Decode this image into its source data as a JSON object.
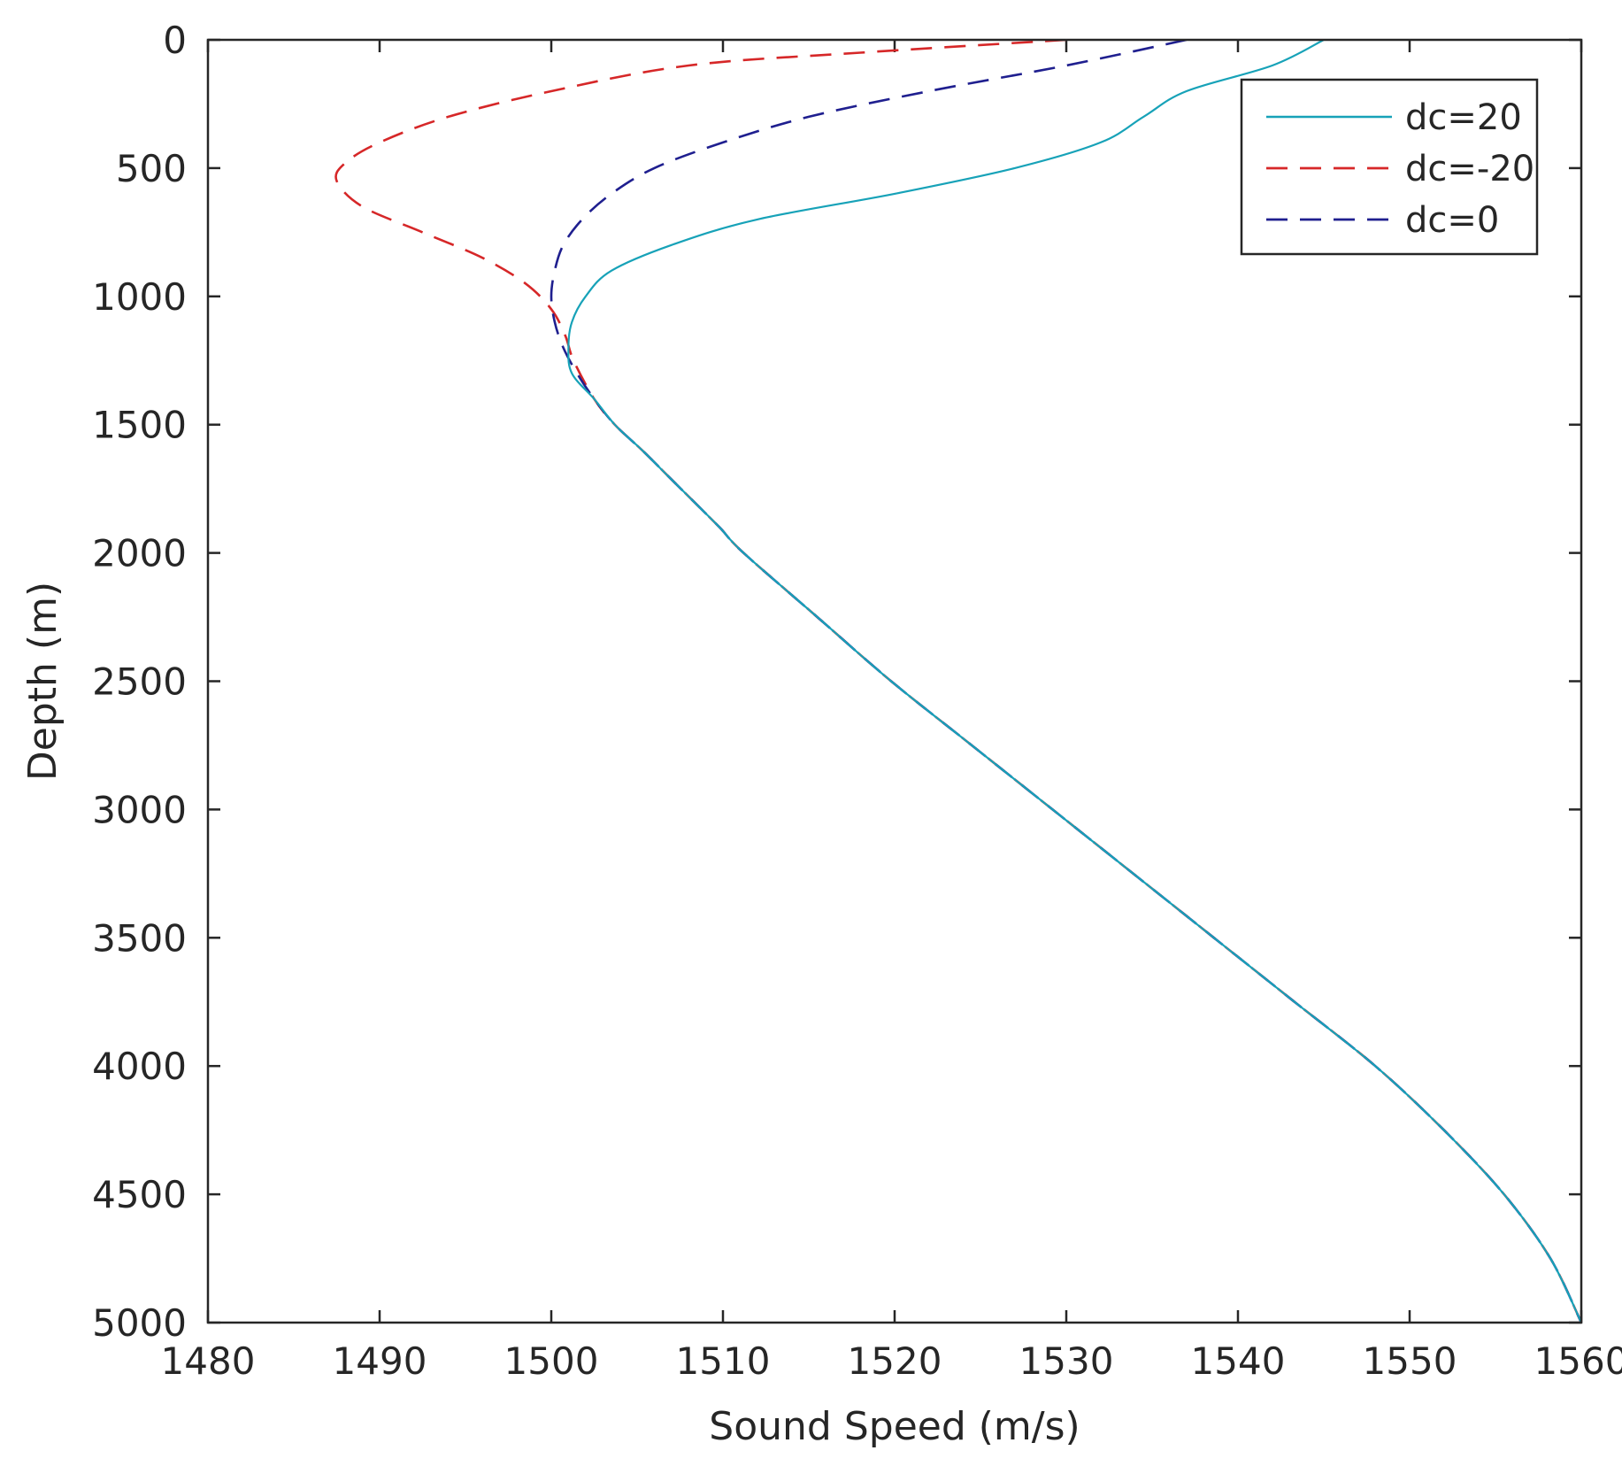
{
  "chart_data": {
    "type": "line",
    "title": "",
    "xlabel": "Sound Speed (m/s)",
    "ylabel": "Depth (m)",
    "xlim": [
      1480,
      1560
    ],
    "ylim": [
      0,
      5000
    ],
    "y_reversed": true,
    "xticks": [
      "1480",
      "1490",
      "1500",
      "1510",
      "1520",
      "1530",
      "1540",
      "1550",
      "1560"
    ],
    "yticks": [
      "0",
      "500",
      "1000",
      "1500",
      "2000",
      "2500",
      "3000",
      "3500",
      "4000",
      "4500",
      "5000"
    ],
    "grid": false,
    "legend_position": "top-right",
    "series": [
      {
        "name": "dc=20",
        "color": "#17a2b8",
        "style": "solid",
        "points": [
          [
            1545.0,
            0
          ],
          [
            1542.0,
            100
          ],
          [
            1537.0,
            200
          ],
          [
            1534.5,
            300
          ],
          [
            1532.0,
            400
          ],
          [
            1527.0,
            500
          ],
          [
            1520.0,
            600
          ],
          [
            1512.0,
            700
          ],
          [
            1507.0,
            800
          ],
          [
            1503.5,
            900
          ],
          [
            1502.0,
            1000
          ],
          [
            1501.2,
            1100
          ],
          [
            1501.0,
            1200
          ],
          [
            1501.2,
            1300
          ],
          [
            1502.5,
            1400
          ],
          [
            1503.7,
            1500
          ],
          [
            1505.3,
            1600
          ],
          [
            1506.8,
            1700
          ],
          [
            1508.3,
            1800
          ],
          [
            1509.8,
            1900
          ],
          [
            1511.2,
            2000
          ],
          [
            1515.5,
            2250
          ],
          [
            1519.8,
            2500
          ],
          [
            1524.5,
            2750
          ],
          [
            1529.2,
            3000
          ],
          [
            1533.9,
            3250
          ],
          [
            1538.6,
            3500
          ],
          [
            1543.3,
            3750
          ],
          [
            1548.0,
            4000
          ],
          [
            1552.0,
            4250
          ],
          [
            1555.5,
            4500
          ],
          [
            1558.2,
            4750
          ],
          [
            1560.0,
            5000
          ]
        ]
      },
      {
        "name": "dc=-20",
        "color": "#d62728",
        "style": "dashed",
        "points": [
          [
            1530.0,
            0
          ],
          [
            1518.0,
            50
          ],
          [
            1508.0,
            100
          ],
          [
            1500.0,
            200
          ],
          [
            1494.0,
            300
          ],
          [
            1490.0,
            400
          ],
          [
            1488.0,
            480
          ],
          [
            1487.5,
            550
          ],
          [
            1489.0,
            650
          ],
          [
            1492.5,
            750
          ],
          [
            1496.0,
            850
          ],
          [
            1498.5,
            950
          ],
          [
            1500.0,
            1050
          ],
          [
            1500.8,
            1150
          ],
          [
            1501.3,
            1250
          ],
          [
            1502.5,
            1400
          ],
          [
            1503.7,
            1500
          ],
          [
            1505.3,
            1600
          ],
          [
            1506.8,
            1700
          ],
          [
            1508.3,
            1800
          ],
          [
            1509.8,
            1900
          ],
          [
            1511.2,
            2000
          ],
          [
            1515.5,
            2250
          ],
          [
            1519.8,
            2500
          ],
          [
            1524.5,
            2750
          ],
          [
            1529.2,
            3000
          ],
          [
            1533.9,
            3250
          ],
          [
            1538.6,
            3500
          ],
          [
            1543.3,
            3750
          ],
          [
            1548.0,
            4000
          ],
          [
            1552.0,
            4250
          ],
          [
            1555.5,
            4500
          ],
          [
            1558.2,
            4750
          ],
          [
            1560.0,
            5000
          ]
        ]
      },
      {
        "name": "dc=0",
        "color": "#1f1f8f",
        "style": "dashed",
        "points": [
          [
            1537.0,
            0
          ],
          [
            1530.0,
            100
          ],
          [
            1522.0,
            200
          ],
          [
            1515.0,
            300
          ],
          [
            1510.0,
            400
          ],
          [
            1506.0,
            500
          ],
          [
            1503.5,
            600
          ],
          [
            1501.8,
            700
          ],
          [
            1500.7,
            800
          ],
          [
            1500.2,
            900
          ],
          [
            1500.0,
            1000
          ],
          [
            1500.2,
            1100
          ],
          [
            1500.7,
            1200
          ],
          [
            1501.5,
            1300
          ],
          [
            1502.5,
            1400
          ],
          [
            1503.7,
            1500
          ],
          [
            1505.3,
            1600
          ],
          [
            1506.8,
            1700
          ],
          [
            1508.3,
            1800
          ],
          [
            1509.8,
            1900
          ],
          [
            1511.2,
            2000
          ],
          [
            1515.5,
            2250
          ],
          [
            1519.8,
            2500
          ],
          [
            1524.5,
            2750
          ],
          [
            1529.2,
            3000
          ],
          [
            1533.9,
            3250
          ],
          [
            1538.6,
            3500
          ],
          [
            1543.3,
            3750
          ],
          [
            1548.0,
            4000
          ],
          [
            1552.0,
            4250
          ],
          [
            1555.5,
            4500
          ],
          [
            1558.2,
            4750
          ],
          [
            1560.0,
            5000
          ]
        ]
      }
    ]
  }
}
